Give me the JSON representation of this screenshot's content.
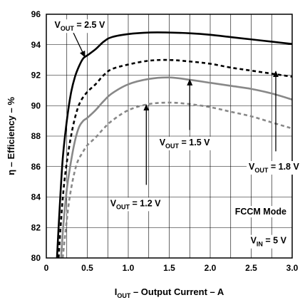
{
  "chart_data": {
    "type": "line",
    "xlabel": {
      "main": "I",
      "sub": "OUT",
      "rest": " – Output Current – A"
    },
    "ylabel": "η – Efficiency – %",
    "xlim": [
      0,
      3.0
    ],
    "ylim": [
      80,
      96
    ],
    "x_ticks": [
      "0",
      "0.5",
      "1.0",
      "1.5",
      "2.0",
      "2.5",
      "3.0"
    ],
    "x_tick_values": [
      0,
      0.5,
      1.0,
      1.5,
      2.0,
      2.5,
      3.0
    ],
    "y_ticks": [
      "80",
      "82",
      "84",
      "86",
      "88",
      "90",
      "92",
      "94",
      "96"
    ],
    "y_tick_values": [
      80,
      82,
      84,
      86,
      88,
      90,
      92,
      94,
      96
    ],
    "grid": true,
    "series": [
      {
        "name": "VOUT = 2.5 V",
        "color": "#000000",
        "style": "solid",
        "x": [
          0.13,
          0.16,
          0.2,
          0.25,
          0.3,
          0.35,
          0.4,
          0.45,
          0.5,
          0.6,
          0.7,
          0.8,
          1.0,
          1.25,
          1.5,
          1.75,
          2.0,
          2.25,
          2.5,
          2.75,
          3.0
        ],
        "values": [
          80.0,
          83.0,
          86.5,
          89.0,
          90.8,
          91.9,
          92.6,
          93.1,
          93.3,
          93.7,
          94.2,
          94.5,
          94.7,
          94.8,
          94.8,
          94.75,
          94.65,
          94.5,
          94.35,
          94.2,
          94.05
        ]
      },
      {
        "name": "VOUT = 1.8 V",
        "color": "#000000",
        "style": "dashed",
        "x": [
          0.15,
          0.18,
          0.22,
          0.27,
          0.32,
          0.37,
          0.42,
          0.5,
          0.6,
          0.7,
          0.8,
          1.0,
          1.25,
          1.5,
          1.75,
          2.0,
          2.25,
          2.5,
          2.75,
          3.0
        ],
        "values": [
          80.0,
          82.5,
          85.0,
          87.0,
          88.5,
          89.6,
          90.3,
          90.9,
          91.4,
          92.0,
          92.4,
          92.7,
          92.95,
          93.0,
          92.9,
          92.75,
          92.5,
          92.3,
          92.1,
          91.9
        ]
      },
      {
        "name": "VOUT = 1.5 V",
        "color": "#888888",
        "style": "solid",
        "x": [
          0.18,
          0.21,
          0.25,
          0.3,
          0.35,
          0.4,
          0.45,
          0.5,
          0.6,
          0.7,
          0.8,
          1.0,
          1.25,
          1.5,
          1.75,
          2.0,
          2.25,
          2.5,
          2.75,
          3.0
        ],
        "values": [
          80.0,
          82.3,
          84.5,
          86.3,
          87.7,
          88.6,
          89.0,
          89.2,
          89.7,
          90.3,
          90.8,
          91.4,
          91.75,
          91.85,
          91.7,
          91.5,
          91.3,
          91.1,
          90.8,
          90.4
        ]
      },
      {
        "name": "VOUT = 1.2 V",
        "color": "#888888",
        "style": "dashed",
        "x": [
          0.2,
          0.24,
          0.28,
          0.33,
          0.38,
          0.44,
          0.5,
          0.6,
          0.7,
          0.8,
          1.0,
          1.25,
          1.5,
          1.75,
          2.0,
          2.25,
          2.5,
          2.75,
          3.0
        ],
        "values": [
          80.0,
          82.0,
          83.8,
          85.3,
          86.3,
          86.9,
          87.4,
          87.9,
          88.5,
          89.0,
          89.7,
          90.1,
          90.2,
          90.1,
          89.9,
          89.6,
          89.3,
          88.9,
          88.5
        ]
      }
    ],
    "annotations": [
      {
        "id": "a25",
        "text": "V",
        "sub": "OUT",
        "rest": " = 2.5 V",
        "tip_x": 0.47,
        "tip_y": 93.2,
        "tail_x": 0.32,
        "tail_y": 94.9,
        "label_x": 0.1,
        "label_y": 95.1
      },
      {
        "id": "a18",
        "text": "V",
        "sub": "OUT",
        "rest": " = 1.8 V",
        "tip_x": 2.8,
        "tip_y": 92.25,
        "tail_x": 2.8,
        "tail_y": 87.0,
        "label_x": 2.47,
        "label_y": 85.8
      },
      {
        "id": "a15",
        "text": "V",
        "sub": "OUT",
        "rest": " = 1.5 V",
        "tip_x": 1.75,
        "tip_y": 91.7,
        "tail_x": 1.75,
        "tail_y": 88.4,
        "label_x": 1.38,
        "label_y": 87.4
      },
      {
        "id": "a12",
        "text": "V",
        "sub": "OUT",
        "rest": " = 1.2 V",
        "tip_x": 1.22,
        "tip_y": 90.05,
        "tail_x": 1.22,
        "tail_y": 84.8,
        "label_x": 0.78,
        "label_y": 83.4
      }
    ],
    "notes": [
      {
        "id": "mode",
        "text": "FCCM Mode",
        "x": 2.93,
        "y": 82.85
      },
      {
        "id": "vin",
        "text": "V",
        "sub": "IN",
        "rest": " = 5 V",
        "x": 2.93,
        "y": 80.95
      }
    ]
  }
}
